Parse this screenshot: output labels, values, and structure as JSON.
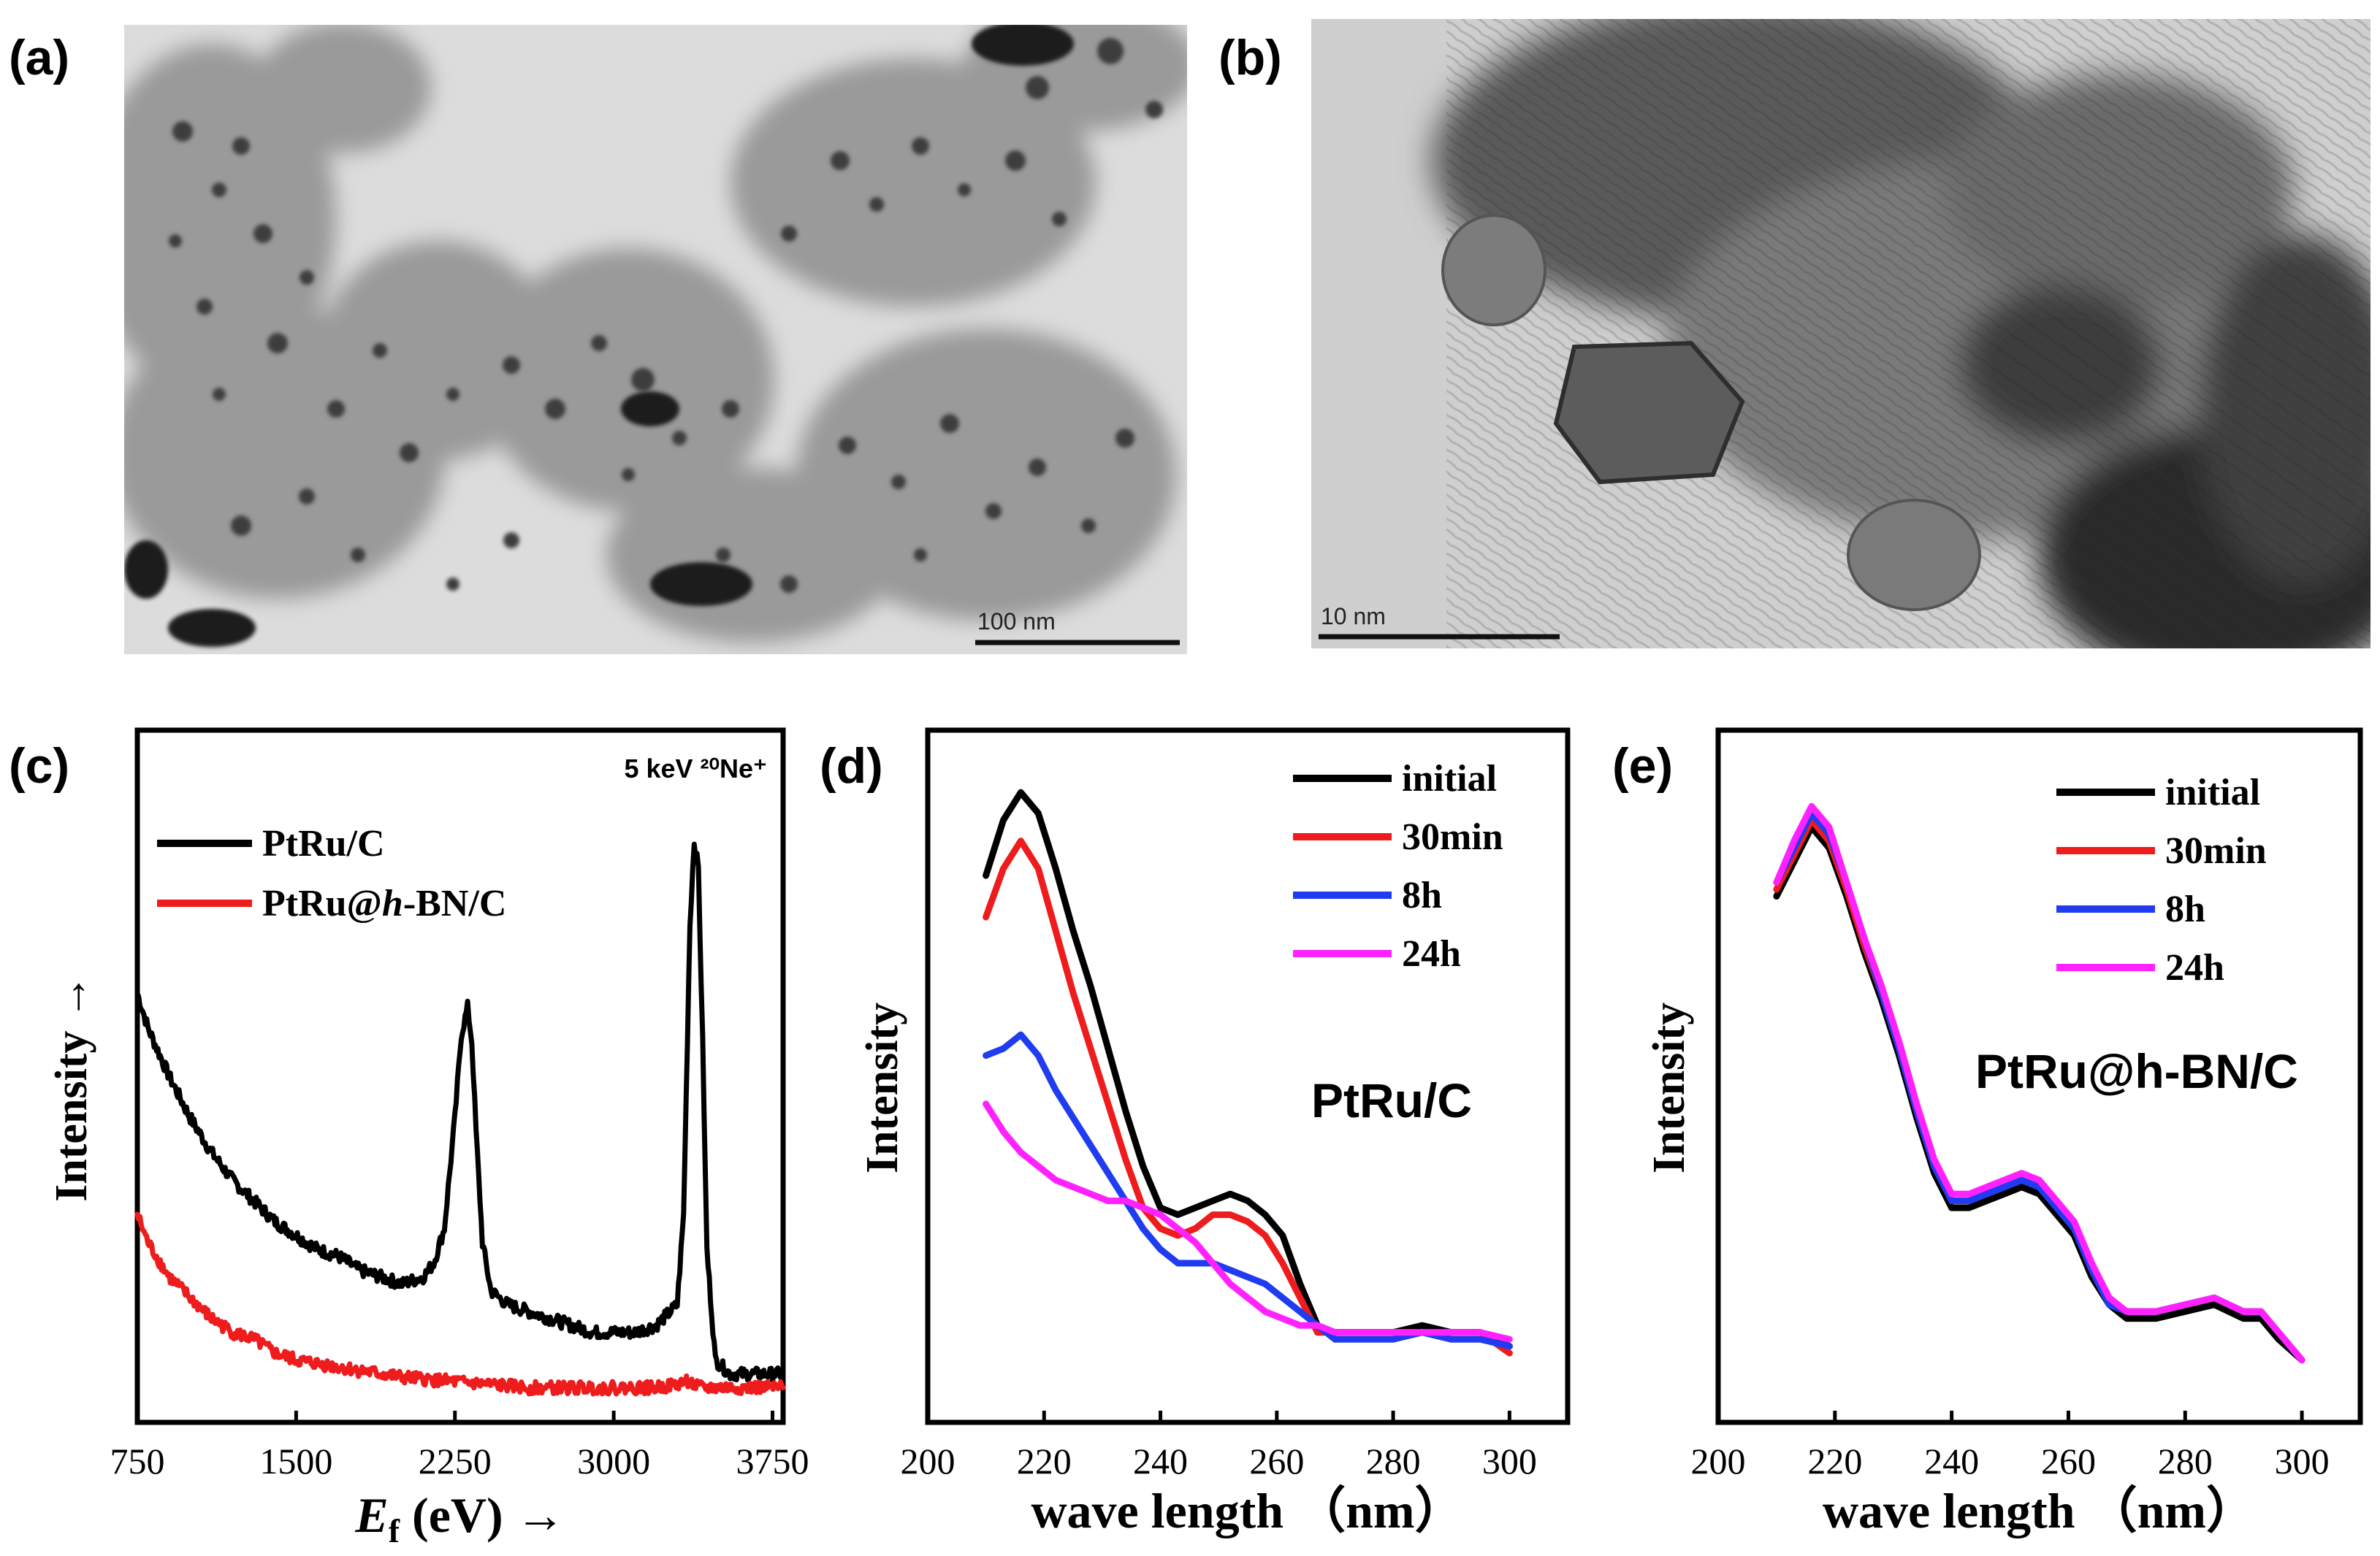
{
  "panels": {
    "a": {
      "letter": "(a)",
      "scale_bar": "100 nm"
    },
    "b": {
      "letter": "(b)",
      "scale_bar": "10 nm"
    },
    "c": {
      "letter": "(c)"
    },
    "d": {
      "letter": "(d)"
    },
    "e": {
      "letter": "(e)"
    }
  },
  "chart_data": [
    {
      "panel": "c",
      "type": "line",
      "annotation": "5 keV ²⁰Ne⁺",
      "xlabel": "E_f (eV) →",
      "xlabel_main": "E",
      "xlabel_sub": "f",
      "xlabel_rest": " (eV) →",
      "ylabel": "Intensity →",
      "xlim": [
        750,
        3800
      ],
      "ylim": [
        0,
        1
      ],
      "xticks": [
        750,
        1500,
        2250,
        3000,
        3750
      ],
      "grid": false,
      "legend_position": "top-left",
      "series": [
        {
          "name": "PtRu/C",
          "color": "#000000",
          "x": [
            750,
            800,
            900,
            1000,
            1100,
            1200,
            1300,
            1400,
            1500,
            1600,
            1700,
            1800,
            1900,
            2000,
            2100,
            2150,
            2200,
            2250,
            2280,
            2310,
            2330,
            2350,
            2380,
            2420,
            2500,
            2600,
            2700,
            2800,
            2900,
            3000,
            3100,
            3200,
            3300,
            3330,
            3360,
            3380,
            3400,
            3420,
            3440,
            3480,
            3550,
            3650,
            3750,
            3800
          ],
          "y": [
            0.62,
            0.57,
            0.5,
            0.44,
            0.39,
            0.35,
            0.32,
            0.29,
            0.27,
            0.25,
            0.24,
            0.22,
            0.21,
            0.2,
            0.21,
            0.23,
            0.28,
            0.44,
            0.56,
            0.6,
            0.55,
            0.42,
            0.26,
            0.19,
            0.17,
            0.16,
            0.15,
            0.14,
            0.13,
            0.13,
            0.13,
            0.14,
            0.17,
            0.3,
            0.72,
            0.84,
            0.8,
            0.55,
            0.25,
            0.09,
            0.07,
            0.07,
            0.07,
            0.07
          ]
        },
        {
          "name": "PtRu@h-BN/C",
          "color": "#ee1c1c",
          "x": [
            750,
            800,
            900,
            1000,
            1100,
            1200,
            1300,
            1400,
            1500,
            1600,
            1700,
            1800,
            1900,
            2000,
            2200,
            2400,
            2600,
            2800,
            3000,
            3200,
            3300,
            3350,
            3400,
            3500,
            3650,
            3800
          ],
          "y": [
            0.3,
            0.26,
            0.21,
            0.18,
            0.15,
            0.13,
            0.12,
            0.1,
            0.09,
            0.085,
            0.08,
            0.075,
            0.07,
            0.065,
            0.06,
            0.055,
            0.05,
            0.05,
            0.05,
            0.05,
            0.055,
            0.06,
            0.05,
            0.05,
            0.05,
            0.05
          ]
        }
      ]
    },
    {
      "panel": "d",
      "type": "line",
      "annotation": "PtRu/C",
      "xlabel": "wave length （nm）",
      "ylabel": "Intensity",
      "xlim": [
        200,
        310
      ],
      "ylim": [
        0,
        1
      ],
      "xticks": [
        200,
        220,
        240,
        260,
        280,
        300
      ],
      "grid": false,
      "legend_position": "top-right",
      "series": [
        {
          "name": "initial",
          "color": "#000000",
          "x": [
            210,
            213,
            216,
            219,
            222,
            225,
            228,
            231,
            234,
            237,
            240,
            243,
            246,
            249,
            252,
            255,
            258,
            261,
            264,
            267,
            270,
            275,
            280,
            285,
            290,
            295,
            300
          ],
          "y": [
            0.79,
            0.87,
            0.91,
            0.88,
            0.8,
            0.71,
            0.63,
            0.54,
            0.45,
            0.37,
            0.31,
            0.3,
            0.31,
            0.32,
            0.33,
            0.32,
            0.3,
            0.27,
            0.2,
            0.14,
            0.13,
            0.13,
            0.13,
            0.14,
            0.13,
            0.13,
            0.11
          ]
        },
        {
          "name": "30min",
          "color": "#ee1c1c",
          "x": [
            210,
            213,
            216,
            219,
            222,
            225,
            228,
            231,
            234,
            237,
            240,
            243,
            246,
            249,
            252,
            255,
            258,
            261,
            264,
            267,
            270,
            275,
            280,
            285,
            290,
            295,
            300
          ],
          "y": [
            0.73,
            0.8,
            0.84,
            0.8,
            0.71,
            0.62,
            0.54,
            0.46,
            0.38,
            0.31,
            0.28,
            0.27,
            0.28,
            0.3,
            0.3,
            0.29,
            0.27,
            0.23,
            0.18,
            0.13,
            0.13,
            0.13,
            0.13,
            0.13,
            0.13,
            0.13,
            0.1
          ]
        },
        {
          "name": "8h",
          "color": "#1f3cf0",
          "x": [
            210,
            213,
            216,
            219,
            222,
            225,
            228,
            231,
            234,
            237,
            240,
            243,
            246,
            249,
            252,
            255,
            258,
            261,
            264,
            267,
            270,
            275,
            280,
            285,
            290,
            295,
            300
          ],
          "y": [
            0.53,
            0.54,
            0.56,
            0.53,
            0.48,
            0.44,
            0.4,
            0.36,
            0.32,
            0.28,
            0.25,
            0.23,
            0.23,
            0.23,
            0.22,
            0.21,
            0.2,
            0.18,
            0.16,
            0.14,
            0.12,
            0.12,
            0.12,
            0.13,
            0.12,
            0.12,
            0.11
          ]
        },
        {
          "name": "24h",
          "color": "#ff22ff",
          "x": [
            210,
            213,
            216,
            219,
            222,
            225,
            228,
            231,
            234,
            237,
            240,
            243,
            246,
            249,
            252,
            255,
            258,
            261,
            264,
            267,
            270,
            275,
            280,
            285,
            290,
            295,
            300
          ],
          "y": [
            0.46,
            0.42,
            0.39,
            0.37,
            0.35,
            0.34,
            0.33,
            0.32,
            0.32,
            0.31,
            0.3,
            0.28,
            0.26,
            0.23,
            0.2,
            0.18,
            0.16,
            0.15,
            0.14,
            0.14,
            0.13,
            0.13,
            0.13,
            0.13,
            0.13,
            0.13,
            0.12
          ]
        }
      ]
    },
    {
      "panel": "e",
      "type": "line",
      "annotation": "PtRu@h-BN/C",
      "xlabel": "wave length （nm）",
      "ylabel": "Intensity",
      "xlim": [
        200,
        310
      ],
      "ylim": [
        0,
        1
      ],
      "xticks": [
        200,
        220,
        240,
        260,
        280,
        300
      ],
      "grid": false,
      "legend_position": "top-right",
      "series": [
        {
          "name": "initial",
          "color": "#000000",
          "x": [
            210,
            213,
            216,
            219,
            222,
            225,
            228,
            231,
            234,
            237,
            240,
            243,
            246,
            249,
            252,
            255,
            258,
            261,
            264,
            267,
            270,
            275,
            280,
            285,
            290,
            293,
            296,
            300
          ],
          "y": [
            0.76,
            0.81,
            0.86,
            0.83,
            0.76,
            0.68,
            0.61,
            0.53,
            0.44,
            0.36,
            0.31,
            0.31,
            0.32,
            0.33,
            0.34,
            0.33,
            0.3,
            0.27,
            0.21,
            0.17,
            0.15,
            0.15,
            0.16,
            0.17,
            0.15,
            0.15,
            0.12,
            0.09
          ]
        },
        {
          "name": "30min",
          "color": "#ee1c1c",
          "x": [
            210,
            213,
            216,
            219,
            222,
            225,
            228,
            231,
            234,
            237,
            240,
            243,
            246,
            249,
            252,
            255,
            258,
            261,
            264,
            267,
            270,
            275,
            280,
            285,
            290,
            293,
            296,
            300
          ],
          "y": [
            0.77,
            0.82,
            0.87,
            0.84,
            0.77,
            0.69,
            0.62,
            0.54,
            0.45,
            0.37,
            0.32,
            0.32,
            0.33,
            0.34,
            0.35,
            0.34,
            0.31,
            0.28,
            0.22,
            0.17,
            0.16,
            0.16,
            0.17,
            0.18,
            0.16,
            0.16,
            0.13,
            0.09
          ]
        },
        {
          "name": "8h",
          "color": "#1f3cf0",
          "x": [
            210,
            213,
            216,
            219,
            222,
            225,
            228,
            231,
            234,
            237,
            240,
            243,
            246,
            249,
            252,
            255,
            258,
            261,
            264,
            267,
            270,
            275,
            280,
            285,
            290,
            293,
            296,
            300
          ],
          "y": [
            0.78,
            0.83,
            0.88,
            0.85,
            0.78,
            0.7,
            0.62,
            0.54,
            0.45,
            0.37,
            0.32,
            0.32,
            0.33,
            0.34,
            0.35,
            0.34,
            0.31,
            0.28,
            0.22,
            0.17,
            0.16,
            0.16,
            0.17,
            0.18,
            0.16,
            0.16,
            0.13,
            0.09
          ]
        },
        {
          "name": "24h",
          "color": "#ff22ff",
          "x": [
            210,
            213,
            216,
            219,
            222,
            225,
            228,
            231,
            234,
            237,
            240,
            243,
            246,
            249,
            252,
            255,
            258,
            261,
            264,
            267,
            270,
            275,
            280,
            285,
            290,
            293,
            296,
            300
          ],
          "y": [
            0.78,
            0.84,
            0.89,
            0.86,
            0.78,
            0.7,
            0.63,
            0.55,
            0.46,
            0.38,
            0.33,
            0.33,
            0.34,
            0.35,
            0.36,
            0.35,
            0.32,
            0.29,
            0.23,
            0.18,
            0.16,
            0.16,
            0.17,
            0.18,
            0.16,
            0.16,
            0.13,
            0.09
          ]
        }
      ]
    }
  ]
}
